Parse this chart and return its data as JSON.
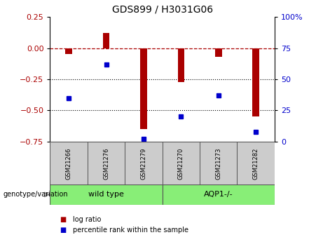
{
  "title": "GDS899 / H3031G06",
  "samples": [
    "GSM21266",
    "GSM21276",
    "GSM21279",
    "GSM21270",
    "GSM21273",
    "GSM21282"
  ],
  "log_ratio": [
    -0.05,
    0.12,
    -0.65,
    -0.27,
    -0.07,
    -0.55
  ],
  "percentile": [
    35,
    62,
    2,
    20,
    37,
    8
  ],
  "bar_color": "#aa0000",
  "dot_color": "#0000cc",
  "wild_type_label": "wild type",
  "aqp1_label": "AQP1-/-",
  "group_color": "#88ee77",
  "genotype_label": "genotype/variation",
  "left_ylim": [
    -0.75,
    0.25
  ],
  "left_yticks": [
    0.25,
    0.0,
    -0.25,
    -0.5,
    -0.75
  ],
  "right_ylim": [
    0,
    100
  ],
  "right_yticks": [
    100,
    75,
    50,
    25,
    0
  ],
  "right_yticklabels": [
    "100%",
    "75",
    "50",
    "25",
    "0"
  ],
  "dotted_lines": [
    -0.25,
    -0.5
  ],
  "bar_width": 0.18,
  "legend_log_ratio": "log ratio",
  "legend_percentile": "percentile rank within the sample",
  "sample_box_color": "#cccccc",
  "sample_box_edge": "#555555",
  "arrow_color": "#888888"
}
